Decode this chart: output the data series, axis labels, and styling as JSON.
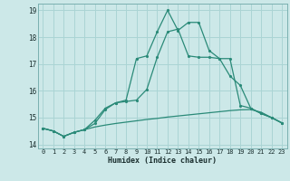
{
  "xlabel": "Humidex (Indice chaleur)",
  "x": [
    0,
    1,
    2,
    3,
    4,
    5,
    6,
    7,
    8,
    9,
    10,
    11,
    12,
    13,
    14,
    15,
    16,
    17,
    18,
    19,
    20,
    21,
    22,
    23
  ],
  "line_flat": [
    14.6,
    14.5,
    14.3,
    14.45,
    14.55,
    14.65,
    14.72,
    14.78,
    14.83,
    14.88,
    14.93,
    14.97,
    15.02,
    15.06,
    15.1,
    15.14,
    15.18,
    15.22,
    15.26,
    15.29,
    15.3,
    15.2,
    15.0,
    14.8
  ],
  "line_mid": [
    14.6,
    14.5,
    14.3,
    14.45,
    14.55,
    14.78,
    15.3,
    15.55,
    15.6,
    15.65,
    16.05,
    17.25,
    18.2,
    18.3,
    17.3,
    17.25,
    17.25,
    17.2,
    17.2,
    15.45,
    15.35,
    15.15,
    15.0,
    14.8
  ],
  "line_peak": [
    14.6,
    14.5,
    14.3,
    14.45,
    14.55,
    14.9,
    15.35,
    15.55,
    15.65,
    17.2,
    17.3,
    18.2,
    19.0,
    18.25,
    18.55,
    18.55,
    17.5,
    17.2,
    16.55,
    16.2,
    15.35,
    15.15,
    15.0,
    14.8
  ],
  "color": "#2a8a78",
  "background": "#cce8e8",
  "grid_color": "#aad4d4",
  "ylim": [
    13.85,
    19.25
  ],
  "xlim": [
    -0.5,
    23.5
  ]
}
